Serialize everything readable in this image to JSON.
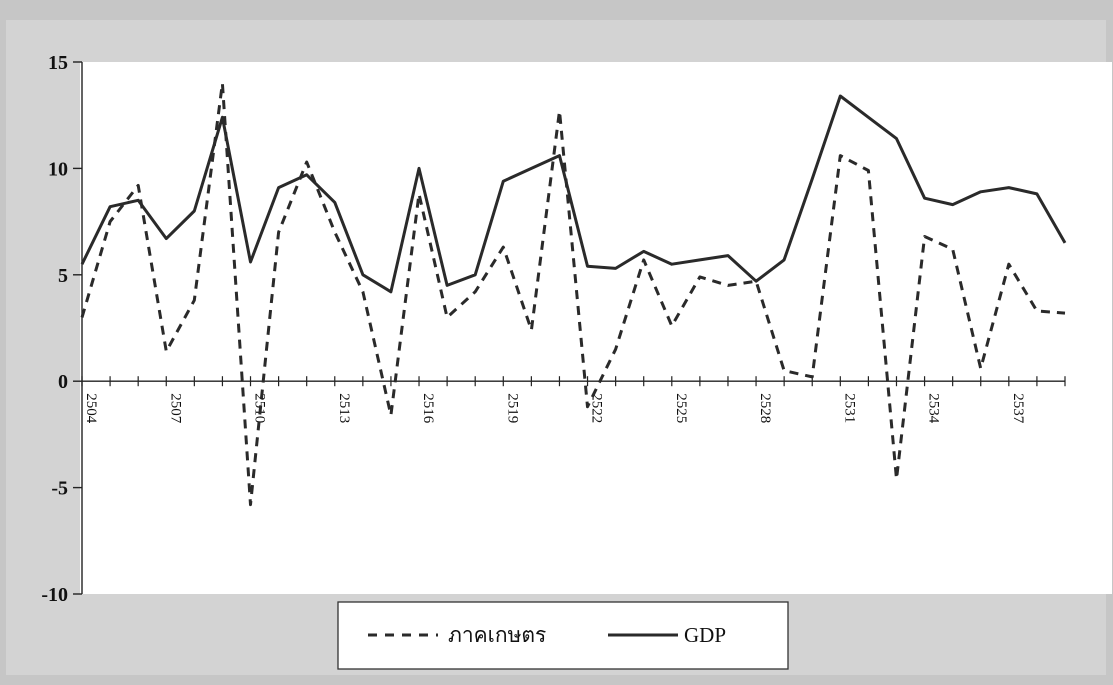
{
  "chart_data": {
    "type": "line",
    "x": [
      2504,
      2505,
      2506,
      2507,
      2508,
      2509,
      2510,
      2511,
      2512,
      2513,
      2514,
      2515,
      2516,
      2517,
      2518,
      2519,
      2520,
      2521,
      2522,
      2523,
      2524,
      2525,
      2526,
      2527,
      2528,
      2529,
      2530,
      2531,
      2532,
      2533,
      2534,
      2535,
      2536,
      2537,
      2538,
      2539
    ],
    "x_tick_labels": [
      "2504",
      "2507",
      "2510",
      "2513",
      "2516",
      "2519",
      "2522",
      "2525",
      "2528",
      "2531",
      "2534",
      "2537"
    ],
    "y_tick_labels": [
      "15",
      "10",
      "5",
      "0",
      "-5",
      "-10"
    ],
    "ylim": [
      -10,
      15
    ],
    "xlim": [
      2504,
      2539
    ],
    "series": [
      {
        "name": "ภาคเกษตร",
        "style": "dashed",
        "color": "#2a2a2a",
        "values": [
          3.0,
          7.5,
          9.2,
          1.4,
          3.8,
          14.0,
          -5.8,
          7.0,
          10.3,
          7.0,
          4.2,
          -1.6,
          8.8,
          3.0,
          4.2,
          6.3,
          2.4,
          12.7,
          -1.2,
          1.5,
          5.7,
          2.6,
          4.9,
          4.5,
          4.7,
          0.5,
          0.2,
          10.6,
          9.9,
          -4.6,
          6.8,
          6.2,
          0.6,
          5.5,
          3.3,
          3.2
        ]
      },
      {
        "name": "GDP",
        "style": "solid",
        "color": "#2a2a2a",
        "values": [
          5.5,
          8.2,
          8.5,
          6.7,
          8.0,
          12.4,
          5.6,
          9.1,
          9.7,
          8.4,
          5.0,
          4.2,
          10.0,
          4.5,
          5.0,
          9.4,
          10.0,
          10.6,
          5.4,
          5.3,
          6.1,
          5.5,
          5.7,
          5.9,
          4.7,
          5.7,
          9.5,
          13.4,
          12.4,
          11.4,
          8.6,
          8.3,
          8.9,
          9.1,
          8.8,
          6.5
        ]
      }
    ],
    "grid": false,
    "legend_position": "bottom-center"
  }
}
